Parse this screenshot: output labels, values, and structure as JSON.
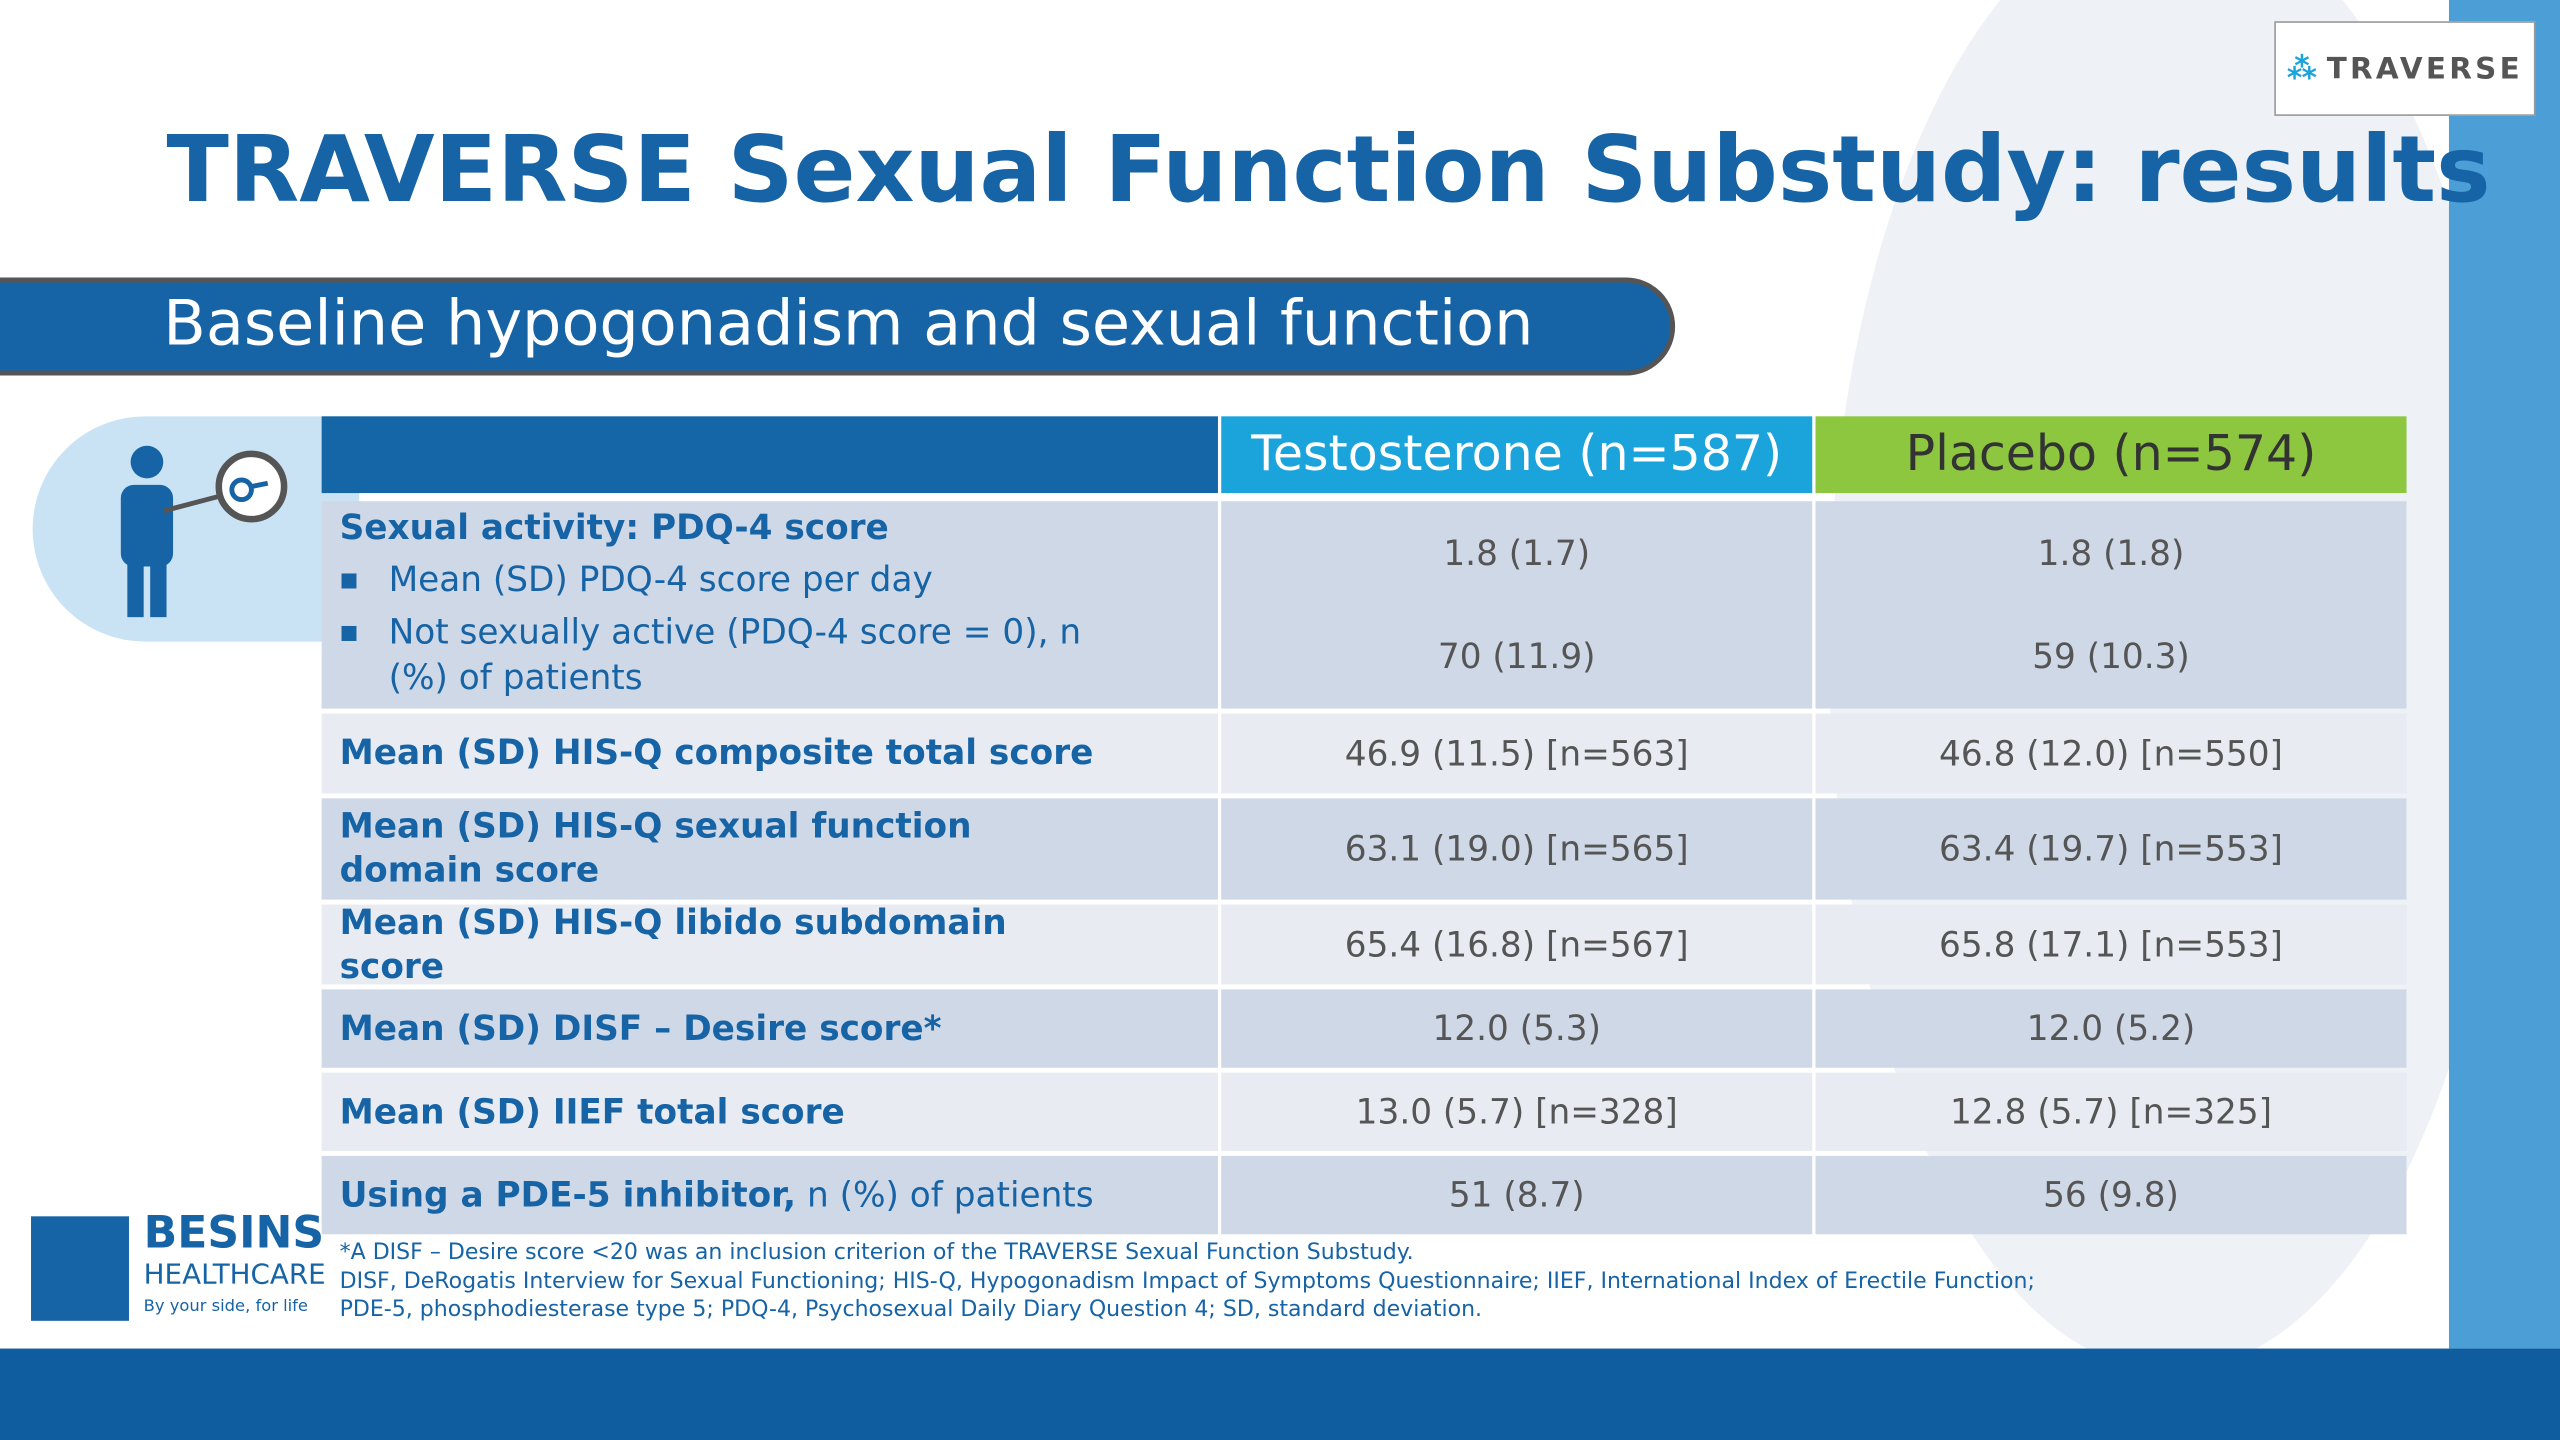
{
  "header": {
    "title": "TRAVERSE Sexual Function Substudy: results",
    "subtitle": "Baseline hypogonadism and sexual function",
    "logo": "TRAVERSE"
  },
  "table": {
    "columns": [
      "Testosterone (n=587)",
      "Placebo (n=574)"
    ],
    "rows": [
      {
        "label": "Sexual activity: PDQ-4 score",
        "bullets": [
          "Mean (SD) PDQ-4 score per day",
          "Not sexually active (PDQ-4 score = 0), n (%) of patients"
        ],
        "testosterone": [
          "1.8 (1.7)",
          "70 (11.9)"
        ],
        "placebo": [
          "1.8 (1.8)",
          "59 (10.3)"
        ]
      },
      {
        "label": "Mean (SD) HIS-Q composite total score",
        "testosterone": [
          "46.9 (11.5) [n=563]"
        ],
        "placebo": [
          "46.8 (12.0) [n=550]"
        ]
      },
      {
        "label": "Mean (SD) HIS-Q sexual function domain score",
        "testosterone": [
          "63.1 (19.0) [n=565]"
        ],
        "placebo": [
          "63.4 (19.7) [n=553]"
        ]
      },
      {
        "label": "Mean (SD) HIS-Q libido subdomain score",
        "testosterone": [
          "65.4 (16.8) [n=567]"
        ],
        "placebo": [
          "65.8 (17.1) [n=553]"
        ]
      },
      {
        "label": "Mean (SD) DISF – Desire score*",
        "testosterone": [
          "12.0 (5.3)"
        ],
        "placebo": [
          "12.0 (5.2)"
        ]
      },
      {
        "label": "Mean (SD) IIEF total score",
        "testosterone": [
          "13.0 (5.7) [n=328]"
        ],
        "placebo": [
          "12.8 (5.7) [n=325]"
        ]
      },
      {
        "label": "Using a PDE-5 inhibitor,",
        "label_note": " n (%) of patients",
        "testosterone": [
          "51 (8.7)"
        ],
        "placebo": [
          "56 (9.8)"
        ]
      }
    ]
  },
  "footnotes": [
    "*A DISF – Desire score <20 was an inclusion criterion of the TRAVERSE Sexual Function Substudy.",
    "DISF, DeRogatis Interview for Sexual Functioning; HIS-Q, Hypogonadism Impact of Symptoms Questionnaire; IIEF, International Index of Erectile Function;",
    "PDE-5, phosphodiesterase type 5; PDQ-4, Psychosexual Daily Diary Question 4; SD, standard deviation."
  ],
  "footer_logo": {
    "name": "BESINS",
    "sub": "HEALTHCARE",
    "tagline": "By your side, for life"
  }
}
